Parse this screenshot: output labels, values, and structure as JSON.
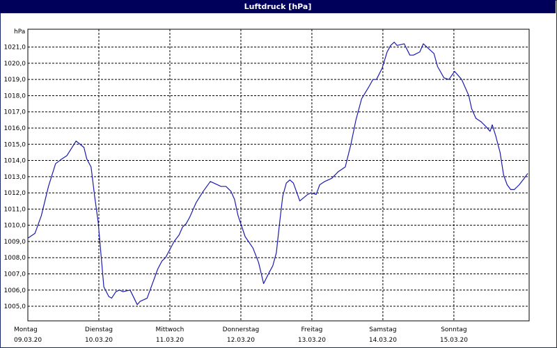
{
  "chart_data": {
    "type": "line",
    "title": "Luftdruck [hPa]",
    "ylabel": "hPa",
    "xlabel": "",
    "ylim": [
      1004.1,
      1022.1
    ],
    "y_ticks": [
      "1005,0",
      "1006,0",
      "1007,0",
      "1008,0",
      "1009,0",
      "1010,0",
      "1011,0",
      "1012,0",
      "1013,0",
      "1014,0",
      "1015,0",
      "1016,0",
      "1017,0",
      "1018,0",
      "1019,0",
      "1020,0",
      "1021,0"
    ],
    "y_tick_values": [
      1005,
      1006,
      1007,
      1008,
      1009,
      1010,
      1011,
      1012,
      1013,
      1014,
      1015,
      1016,
      1017,
      1018,
      1019,
      1020,
      1021
    ],
    "x_day_range": [
      0,
      7.06
    ],
    "x_ticks": [
      {
        "day": "Montag",
        "date": "09.03.20",
        "x": 0
      },
      {
        "day": "Dienstag",
        "date": "10.03.20",
        "x": 1
      },
      {
        "day": "Mittwoch",
        "date": "11.03.20",
        "x": 2
      },
      {
        "day": "Donnerstag",
        "date": "12.03.20",
        "x": 3
      },
      {
        "day": "Freitag",
        "date": "13.03.20",
        "x": 4
      },
      {
        "day": "Samstag",
        "date": "14.03.20",
        "x": 5
      },
      {
        "day": "Sonntag",
        "date": "15.03.20",
        "x": 6
      }
    ],
    "grid": true,
    "series": [
      {
        "color": "#1a1ab0",
        "x": [
          0.0,
          0.1,
          0.19,
          0.29,
          0.39,
          0.48,
          0.55,
          0.68,
          0.79,
          0.83,
          0.89,
          0.94,
          0.99,
          1.07,
          1.14,
          1.18,
          1.24,
          1.29,
          1.34,
          1.44,
          1.54,
          1.58,
          1.68,
          1.73,
          1.83,
          1.89,
          1.94,
          2.06,
          2.13,
          2.18,
          2.23,
          2.28,
          2.37,
          2.47,
          2.57,
          2.62,
          2.72,
          2.79,
          2.86,
          2.91,
          2.96,
          3.06,
          3.17,
          3.25,
          3.32,
          3.4,
          3.45,
          3.5,
          3.55,
          3.59,
          3.64,
          3.69,
          3.74,
          3.83,
          3.94,
          3.99,
          4.06,
          4.11,
          4.18,
          4.28,
          4.37,
          4.47,
          4.55,
          4.62,
          4.7,
          4.81,
          4.86,
          4.91,
          4.99,
          5.06,
          5.11,
          5.16,
          5.2,
          5.3,
          5.38,
          5.43,
          5.52,
          5.57,
          5.62,
          5.72,
          5.77,
          5.86,
          5.93,
          6.01,
          6.11,
          6.21,
          6.25,
          6.31,
          6.38,
          6.45,
          6.51,
          6.54,
          6.59,
          6.65,
          6.7,
          6.75,
          6.8,
          6.85,
          6.92,
          6.99,
          7.04
        ],
        "y": [
          1009.2,
          1009.5,
          1010.6,
          1012.4,
          1013.8,
          1014.1,
          1014.3,
          1015.2,
          1014.8,
          1014.1,
          1013.6,
          1011.8,
          1010.2,
          1006.2,
          1005.6,
          1005.5,
          1005.9,
          1006.0,
          1005.9,
          1006.0,
          1005.1,
          1005.3,
          1005.5,
          1006.1,
          1007.3,
          1007.8,
          1008.0,
          1009.0,
          1009.4,
          1009.9,
          1010.1,
          1010.5,
          1011.4,
          1012.1,
          1012.7,
          1012.6,
          1012.4,
          1012.4,
          1012.1,
          1011.6,
          1010.6,
          1009.3,
          1008.6,
          1007.7,
          1006.4,
          1007.1,
          1007.5,
          1008.3,
          1010.3,
          1011.8,
          1012.6,
          1012.8,
          1012.6,
          1011.5,
          1011.9,
          1012.0,
          1011.9,
          1012.5,
          1012.7,
          1012.9,
          1013.3,
          1013.6,
          1015.0,
          1016.5,
          1017.8,
          1018.6,
          1019.0,
          1019.0,
          1019.7,
          1020.7,
          1021.1,
          1021.3,
          1021.1,
          1021.2,
          1020.5,
          1020.5,
          1020.7,
          1021.2,
          1021.0,
          1020.6,
          1019.8,
          1019.1,
          1019.0,
          1019.5,
          1019.0,
          1018.0,
          1017.2,
          1016.6,
          1016.4,
          1016.1,
          1015.8,
          1016.2,
          1015.5,
          1014.5,
          1013.1,
          1012.5,
          1012.2,
          1012.2,
          1012.5,
          1012.9,
          1013.2
        ]
      }
    ]
  }
}
